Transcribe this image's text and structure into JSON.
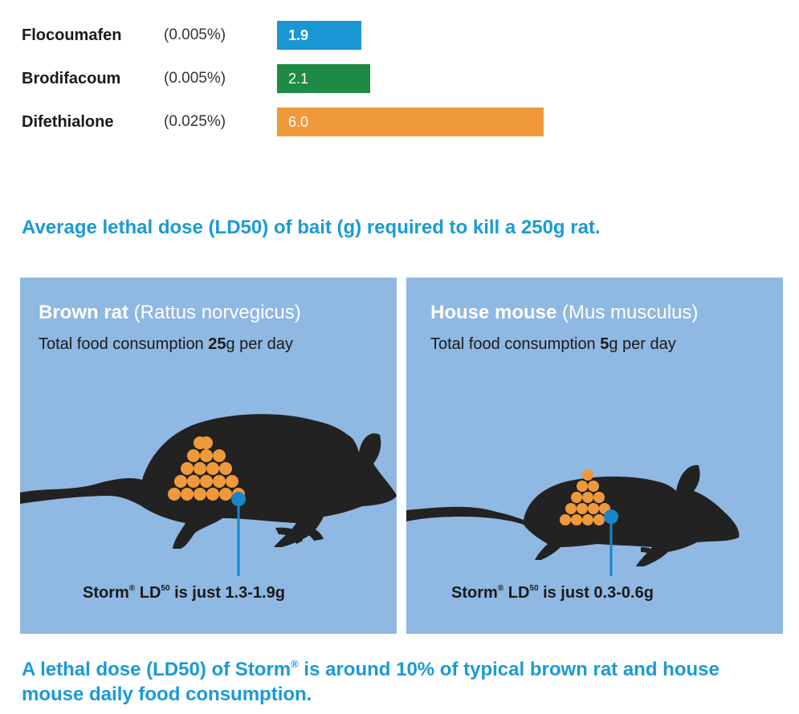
{
  "chart_data": {
    "type": "bar",
    "orientation": "horizontal",
    "categories": [
      "Flocoumafen",
      "Brodifacoum",
      "Difethialone"
    ],
    "concentrations": [
      "(0.005%)",
      "(0.005%)",
      "(0.025%)"
    ],
    "values": [
      1.9,
      2.1,
      6.0
    ],
    "value_labels": [
      "1.9",
      "2.1",
      "6.0"
    ],
    "colors": [
      "#1a96d4",
      "#1e8a45",
      "#f0993a"
    ],
    "title": "Average lethal dose (LD50) of bait (g) required to kill a 250g rat.",
    "xlabel": "",
    "ylabel": "",
    "xlim": [
      0,
      6.0
    ]
  },
  "panels": [
    {
      "name_bold": "Brown rat",
      "name_sci": " (Rattus norvegicus)",
      "consumption_prefix": "Total food consumption ",
      "consumption_value": "25",
      "consumption_suffix": "g per day",
      "storm_brand": "Storm",
      "storm_reg": "®",
      "storm_ld": " LD",
      "storm_sup": "50",
      "storm_text": " is just 1.3-1.9g"
    },
    {
      "name_bold": "House mouse",
      "name_sci": " (Mus musculus)",
      "consumption_prefix": "Total food consumption ",
      "consumption_value": "5",
      "consumption_suffix": "g per day",
      "storm_brand": "Storm",
      "storm_reg": "®",
      "storm_ld": " LD",
      "storm_sup": "50",
      "storm_text": " is just 0.3-0.6g"
    }
  ],
  "footer": {
    "part1": "A lethal dose (LD50) of Storm",
    "reg": "®",
    "part2": " is around 10% of typical brown rat and house mouse daily food consumption."
  },
  "colors": {
    "panel_bg": "#8fb8e3",
    "silhouette": "#222222",
    "pellet": "#f0993a",
    "pointer": "#1a86c8",
    "heading": "#1a9ad6"
  }
}
